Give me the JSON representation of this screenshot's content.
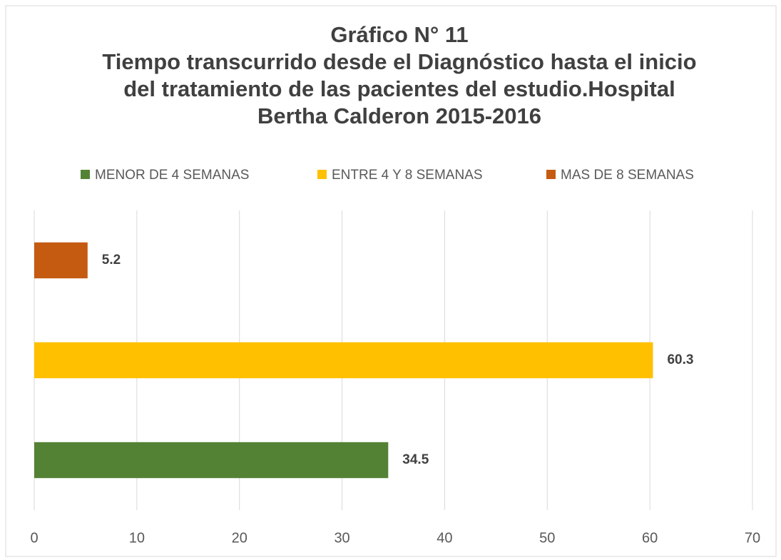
{
  "chart_data": {
    "type": "hbar",
    "title": "Gráfico N° 11",
    "subtitle": "Tiempo transcurrido desde el Diagnóstico hasta el inicio del tratamiento de las pacientes del estudio.Hospital Bertha Calderon 2015-2016",
    "categories": [
      null
    ],
    "series": [
      {
        "name": "MENOR DE 4 SEMANAS",
        "color": "#548235",
        "values": [
          34.5
        ]
      },
      {
        "name": "ENTRE 4 Y 8 SEMANAS",
        "color": "#ffc000",
        "values": [
          60.3
        ]
      },
      {
        "name": "MAS DE 8 SEMANAS",
        "color": "#c55a11",
        "values": [
          5.2
        ]
      }
    ],
    "xlim": [
      0,
      70
    ],
    "xticks": [
      0,
      10,
      20,
      30,
      40,
      50,
      60,
      70
    ],
    "grid": true,
    "legend": "top",
    "data_labels": true
  }
}
